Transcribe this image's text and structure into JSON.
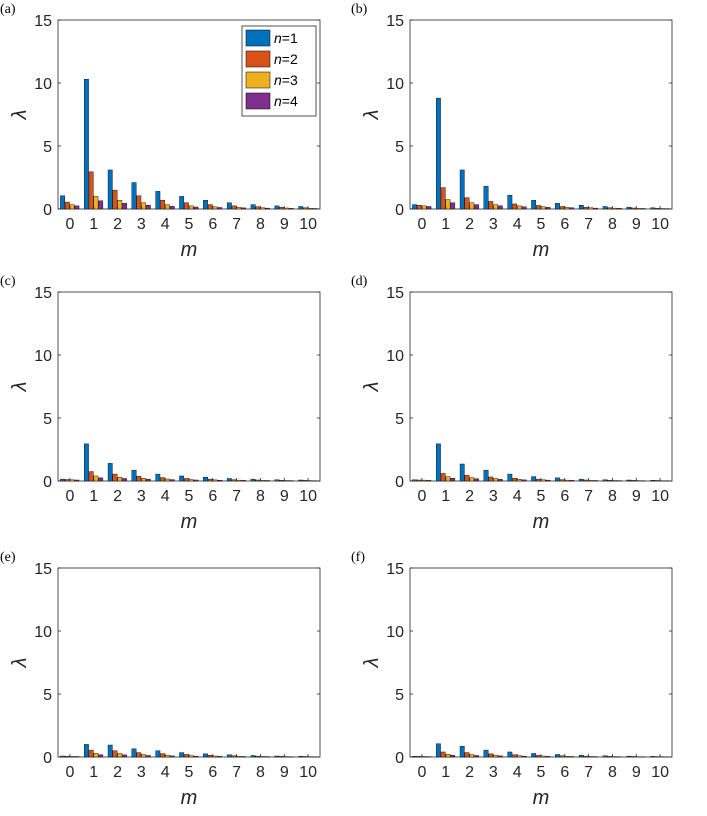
{
  "figure": {
    "legend": {
      "entries": [
        {
          "var": "n",
          "eq": "=1",
          "color": "#0072BD"
        },
        {
          "var": "n",
          "eq": "=2",
          "color": "#D95319"
        },
        {
          "var": "n",
          "eq": "=3",
          "color": "#EDB120"
        },
        {
          "var": "n",
          "eq": "=4",
          "color": "#7E2F8E"
        }
      ],
      "placement": "top-right",
      "panel": 0
    }
  },
  "chart_data": [
    {
      "type": "bar",
      "panel_label": "(a)",
      "xlabel": "m",
      "ylabel": "λ",
      "ylim": [
        0,
        15
      ],
      "yticks": [
        0,
        5,
        10,
        15
      ],
      "categories": [
        "0",
        "1",
        "2",
        "3",
        "4",
        "5",
        "6",
        "7",
        "8",
        "9",
        "10"
      ],
      "series": [
        {
          "name": "n=1",
          "values": [
            1.05,
            10.3,
            3.1,
            2.1,
            1.4,
            1.0,
            0.7,
            0.5,
            0.35,
            0.25,
            0.2
          ]
        },
        {
          "name": "n=2",
          "values": [
            0.55,
            2.95,
            1.5,
            1.05,
            0.7,
            0.5,
            0.35,
            0.25,
            0.18,
            0.14,
            0.1
          ]
        },
        {
          "name": "n=3",
          "values": [
            0.35,
            1.0,
            0.7,
            0.5,
            0.35,
            0.25,
            0.18,
            0.14,
            0.1,
            0.08,
            0.06
          ]
        },
        {
          "name": "n=4",
          "values": [
            0.25,
            0.65,
            0.45,
            0.3,
            0.22,
            0.16,
            0.12,
            0.09,
            0.07,
            0.05,
            0.04
          ]
        }
      ]
    },
    {
      "type": "bar",
      "panel_label": "(b)",
      "xlabel": "m",
      "ylabel": "λ",
      "ylim": [
        0,
        15
      ],
      "yticks": [
        0,
        5,
        10,
        15
      ],
      "categories": [
        "0",
        "1",
        "2",
        "3",
        "4",
        "5",
        "6",
        "7",
        "8",
        "9",
        "10"
      ],
      "series": [
        {
          "name": "n=1",
          "values": [
            0.35,
            8.8,
            3.1,
            1.8,
            1.1,
            0.7,
            0.45,
            0.3,
            0.2,
            0.15,
            0.1
          ]
        },
        {
          "name": "n=2",
          "values": [
            0.3,
            1.7,
            0.9,
            0.6,
            0.4,
            0.28,
            0.2,
            0.14,
            0.1,
            0.08,
            0.06
          ]
        },
        {
          "name": "n=3",
          "values": [
            0.25,
            0.75,
            0.5,
            0.35,
            0.25,
            0.18,
            0.13,
            0.1,
            0.07,
            0.05,
            0.04
          ]
        },
        {
          "name": "n=4",
          "values": [
            0.2,
            0.5,
            0.35,
            0.25,
            0.18,
            0.13,
            0.1,
            0.07,
            0.05,
            0.04,
            0.03
          ]
        }
      ]
    },
    {
      "type": "bar",
      "panel_label": "(c)",
      "xlabel": "m",
      "ylabel": "λ",
      "ylim": [
        0,
        15
      ],
      "yticks": [
        0,
        5,
        10,
        15
      ],
      "categories": [
        "0",
        "1",
        "2",
        "3",
        "4",
        "5",
        "6",
        "7",
        "8",
        "9",
        "10"
      ],
      "series": [
        {
          "name": "n=1",
          "values": [
            0.15,
            2.95,
            1.4,
            0.85,
            0.55,
            0.4,
            0.3,
            0.2,
            0.15,
            0.1,
            0.08
          ]
        },
        {
          "name": "n=2",
          "values": [
            0.12,
            0.75,
            0.55,
            0.38,
            0.27,
            0.2,
            0.15,
            0.1,
            0.08,
            0.06,
            0.05
          ]
        },
        {
          "name": "n=3",
          "values": [
            0.1,
            0.4,
            0.3,
            0.22,
            0.16,
            0.12,
            0.09,
            0.07,
            0.05,
            0.04,
            0.03
          ]
        },
        {
          "name": "n=4",
          "values": [
            0.08,
            0.25,
            0.2,
            0.15,
            0.11,
            0.08,
            0.06,
            0.05,
            0.04,
            0.03,
            0.02
          ]
        }
      ]
    },
    {
      "type": "bar",
      "panel_label": "(d)",
      "xlabel": "m",
      "ylabel": "λ",
      "ylim": [
        0,
        15
      ],
      "yticks": [
        0,
        5,
        10,
        15
      ],
      "categories": [
        "0",
        "1",
        "2",
        "3",
        "4",
        "5",
        "6",
        "7",
        "8",
        "9",
        "10"
      ],
      "series": [
        {
          "name": "n=1",
          "values": [
            0.1,
            2.95,
            1.35,
            0.85,
            0.55,
            0.35,
            0.25,
            0.15,
            0.1,
            0.08,
            0.06
          ]
        },
        {
          "name": "n=2",
          "values": [
            0.08,
            0.6,
            0.45,
            0.32,
            0.22,
            0.15,
            0.11,
            0.08,
            0.06,
            0.05,
            0.04
          ]
        },
        {
          "name": "n=3",
          "values": [
            0.07,
            0.35,
            0.27,
            0.2,
            0.14,
            0.1,
            0.07,
            0.05,
            0.04,
            0.03,
            0.02
          ]
        },
        {
          "name": "n=4",
          "values": [
            0.05,
            0.22,
            0.18,
            0.13,
            0.09,
            0.07,
            0.05,
            0.04,
            0.03,
            0.02,
            0.02
          ]
        }
      ]
    },
    {
      "type": "bar",
      "panel_label": "(e)",
      "xlabel": "m",
      "ylabel": "λ",
      "ylim": [
        0,
        15
      ],
      "yticks": [
        0,
        5,
        10,
        15
      ],
      "categories": [
        "0",
        "1",
        "2",
        "3",
        "4",
        "5",
        "6",
        "7",
        "8",
        "9",
        "10"
      ],
      "series": [
        {
          "name": "n=1",
          "values": [
            0.08,
            1.0,
            0.95,
            0.65,
            0.5,
            0.35,
            0.25,
            0.18,
            0.12,
            0.08,
            0.06
          ]
        },
        {
          "name": "n=2",
          "values": [
            0.06,
            0.55,
            0.5,
            0.35,
            0.27,
            0.2,
            0.14,
            0.1,
            0.07,
            0.05,
            0.04
          ]
        },
        {
          "name": "n=3",
          "values": [
            0.05,
            0.3,
            0.28,
            0.2,
            0.15,
            0.11,
            0.08,
            0.06,
            0.04,
            0.03,
            0.02
          ]
        },
        {
          "name": "n=4",
          "values": [
            0.04,
            0.18,
            0.17,
            0.12,
            0.09,
            0.07,
            0.05,
            0.04,
            0.03,
            0.02,
            0.02
          ]
        }
      ]
    },
    {
      "type": "bar",
      "panel_label": "(f)",
      "xlabel": "m",
      "ylabel": "λ",
      "ylim": [
        0,
        15
      ],
      "yticks": [
        0,
        5,
        10,
        15
      ],
      "categories": [
        "0",
        "1",
        "2",
        "3",
        "4",
        "5",
        "6",
        "7",
        "8",
        "9",
        "10"
      ],
      "series": [
        {
          "name": "n=1",
          "values": [
            0.06,
            1.05,
            0.85,
            0.55,
            0.4,
            0.28,
            0.2,
            0.14,
            0.1,
            0.07,
            0.05
          ]
        },
        {
          "name": "n=2",
          "values": [
            0.05,
            0.4,
            0.35,
            0.25,
            0.18,
            0.13,
            0.1,
            0.07,
            0.05,
            0.04,
            0.03
          ]
        },
        {
          "name": "n=3",
          "values": [
            0.04,
            0.22,
            0.2,
            0.15,
            0.11,
            0.08,
            0.06,
            0.04,
            0.03,
            0.02,
            0.02
          ]
        },
        {
          "name": "n=4",
          "values": [
            0.03,
            0.14,
            0.12,
            0.09,
            0.07,
            0.05,
            0.04,
            0.03,
            0.02,
            0.02,
            0.01
          ]
        }
      ]
    }
  ]
}
